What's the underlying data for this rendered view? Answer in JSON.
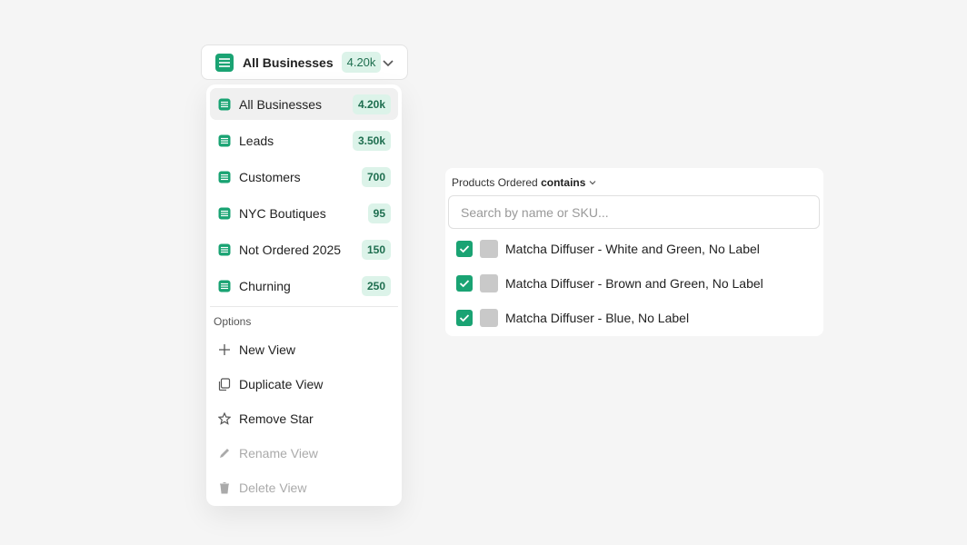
{
  "selector": {
    "label": "All Businesses",
    "count": "4.20k"
  },
  "views": [
    {
      "name": "All Businesses",
      "count": "4.20k",
      "active": true
    },
    {
      "name": "Leads",
      "count": "3.50k",
      "active": false
    },
    {
      "name": "Customers",
      "count": "700",
      "active": false
    },
    {
      "name": "NYC Boutiques",
      "count": "95",
      "active": false
    },
    {
      "name": "Not Ordered 2025",
      "count": "150",
      "active": false
    },
    {
      "name": "Churning",
      "count": "250",
      "active": false
    }
  ],
  "options": {
    "heading": "Options",
    "items": [
      {
        "label": "New View",
        "icon": "plus",
        "disabled": false
      },
      {
        "label": "Duplicate View",
        "icon": "copy",
        "disabled": false
      },
      {
        "label": "Remove Star",
        "icon": "star",
        "disabled": false
      },
      {
        "label": "Rename View",
        "icon": "pencil",
        "disabled": true
      },
      {
        "label": "Delete View",
        "icon": "trash",
        "disabled": true
      }
    ]
  },
  "filter": {
    "field": "Products Ordered",
    "operator": "contains",
    "placeholder": "Search by name or SKU...",
    "items": [
      {
        "label": "Matcha Diffuser - White and Green, No Label",
        "checked": true
      },
      {
        "label": "Matcha Diffuser - Brown and Green, No Label",
        "checked": true
      },
      {
        "label": "Matcha Diffuser - Blue, No Label",
        "checked": true
      }
    ]
  }
}
